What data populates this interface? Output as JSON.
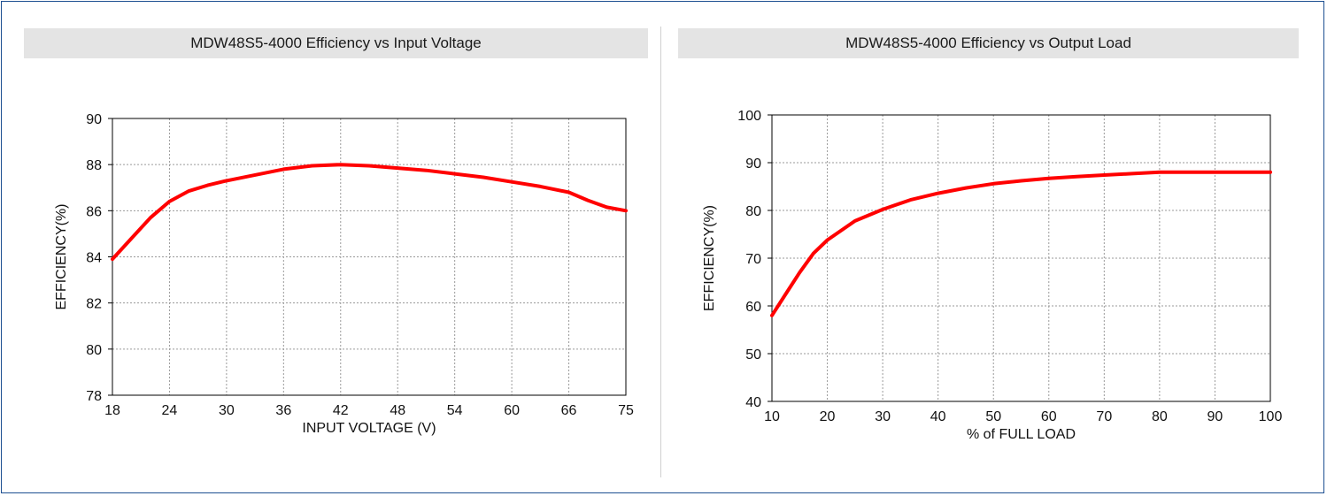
{
  "colors": {
    "frame": "#1d4f91",
    "series": "#ff0000",
    "title_bg": "#e4e4e4"
  },
  "chart_data": [
    {
      "type": "line",
      "title": "MDW48S5-4000 Efficiency vs Input Voltage",
      "xlabel": "INPUT VOLTAGE (V)",
      "ylabel": "EFFICIENCY(%)",
      "x_ticks": [
        "18",
        "24",
        "30",
        "36",
        "42",
        "48",
        "54",
        "60",
        "66",
        "75"
      ],
      "y_ticks": [
        78,
        80,
        82,
        84,
        86,
        88,
        90
      ],
      "ylim": [
        78,
        90
      ],
      "grid": true,
      "series": [
        {
          "x": [
            18,
            20,
            22,
            24,
            26,
            28,
            30,
            33,
            36,
            39,
            42,
            45,
            48,
            51,
            54,
            57,
            60,
            63,
            66,
            69,
            72,
            75
          ],
          "y": [
            83.9,
            84.8,
            85.7,
            86.4,
            86.85,
            87.1,
            87.3,
            87.55,
            87.8,
            87.95,
            88.0,
            87.95,
            87.85,
            87.75,
            87.6,
            87.45,
            87.25,
            87.05,
            86.8,
            86.45,
            86.15,
            86.0
          ]
        }
      ]
    },
    {
      "type": "line",
      "title": "MDW48S5-4000 Efficiency vs Output Load",
      "xlabel": "% of FULL LOAD",
      "ylabel": "EFFICIENCY(%)",
      "x_ticks": [
        10,
        20,
        30,
        40,
        50,
        60,
        70,
        80,
        90,
        100
      ],
      "y_ticks": [
        40,
        50,
        60,
        70,
        80,
        90,
        100
      ],
      "xlim": [
        10,
        100
      ],
      "ylim": [
        40,
        100
      ],
      "grid": true,
      "series": [
        {
          "x": [
            10,
            12.5,
            15,
            17.5,
            20,
            25,
            30,
            35,
            40,
            45,
            50,
            55,
            60,
            65,
            70,
            75,
            80,
            85,
            90,
            95,
            100
          ],
          "y": [
            58,
            62.5,
            67,
            71,
            73.8,
            77.8,
            80.2,
            82.2,
            83.6,
            84.7,
            85.6,
            86.2,
            86.7,
            87.1,
            87.4,
            87.7,
            88.0,
            88.0,
            88.0,
            88.0,
            88.0
          ]
        }
      ]
    }
  ]
}
